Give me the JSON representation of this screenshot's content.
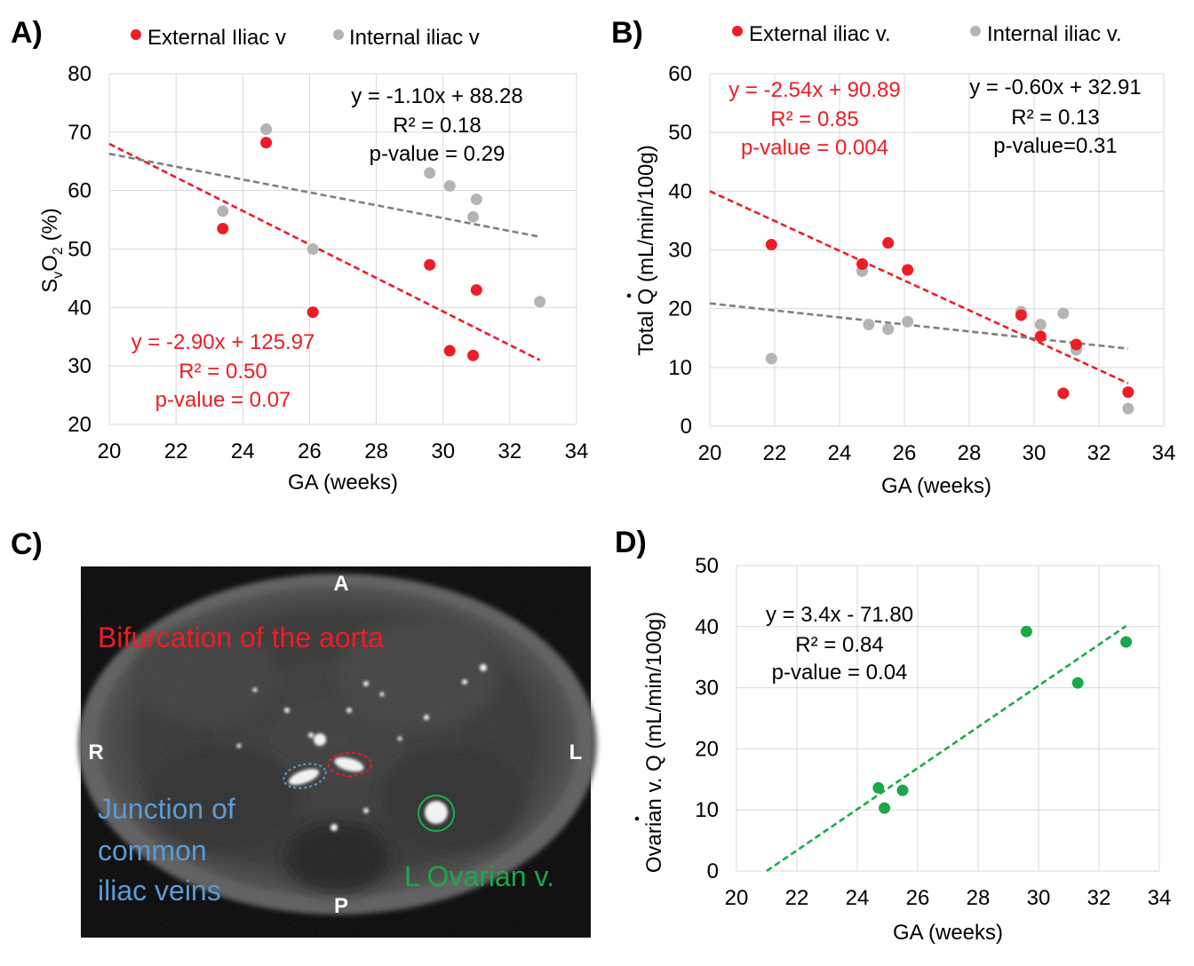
{
  "colors": {
    "red": "#ee1c25",
    "gray": "#b4b4b4",
    "dark_gray": "#7f7f7f",
    "green": "#1aa94a",
    "blue": "#5b9bd5",
    "grid": "#d9d9d9"
  },
  "chart_data": [
    {
      "id": "A",
      "panel_label": "A)",
      "type": "scatter",
      "xlabel": "GA (weeks)",
      "ylabel": "SᵥO₂ (%)",
      "xlim": [
        20,
        34
      ],
      "ylim": [
        20,
        80
      ],
      "xticks": [
        20,
        22,
        24,
        26,
        28,
        30,
        32,
        34
      ],
      "yticks": [
        20,
        30,
        40,
        50,
        60,
        70,
        80
      ],
      "legend": "top",
      "series": [
        {
          "name": "External Iliac v",
          "color": "#ee1c25",
          "points": [
            [
              23.4,
              53.5
            ],
            [
              24.7,
              68.2
            ],
            [
              26.1,
              39.2
            ],
            [
              29.6,
              47.3
            ],
            [
              30.2,
              32.6
            ],
            [
              30.9,
              31.8
            ],
            [
              31.0,
              43.0
            ]
          ],
          "trendline": {
            "x": [
              20.0,
              32.9
            ],
            "y": [
              68.0,
              31.0
            ]
          },
          "annotation": [
            "y = -2.90x + 125.97",
            "R² = 0.50",
            "p-value = 0.07"
          ]
        },
        {
          "name": "Internal iliac v",
          "color": "#b4b4b4",
          "points": [
            [
              23.4,
              56.5
            ],
            [
              24.7,
              70.5
            ],
            [
              26.1,
              50.0
            ],
            [
              29.6,
              63.0
            ],
            [
              30.2,
              60.8
            ],
            [
              30.9,
              55.5
            ],
            [
              31.0,
              58.5
            ],
            [
              32.9,
              41.0
            ]
          ],
          "trendline": {
            "x": [
              20.0,
              32.9
            ],
            "y": [
              66.3,
              52.1
            ]
          },
          "annotation": [
            "y = -1.10x + 88.28",
            "R² = 0.18",
            "p-value = 0.29"
          ]
        }
      ]
    },
    {
      "id": "B",
      "panel_label": "B)",
      "type": "scatter",
      "xlabel": "GA (weeks)",
      "ylabel": "Total Q (mL/min/100g)",
      "ylabel_dot_symbol": "Q",
      "xlim": [
        20,
        34
      ],
      "ylim": [
        0,
        60
      ],
      "xticks": [
        20,
        22,
        24,
        26,
        28,
        30,
        32,
        34
      ],
      "yticks": [
        0,
        10,
        20,
        30,
        40,
        50,
        60
      ],
      "legend": "top",
      "series": [
        {
          "name": "External iliac v.",
          "color": "#ee1c25",
          "points": [
            [
              21.9,
              30.9
            ],
            [
              24.7,
              27.6
            ],
            [
              25.5,
              31.2
            ],
            [
              26.1,
              26.6
            ],
            [
              29.6,
              18.9
            ],
            [
              30.2,
              15.3
            ],
            [
              30.9,
              5.6
            ],
            [
              31.3,
              13.9
            ],
            [
              32.9,
              5.8
            ]
          ],
          "trendline": {
            "x": [
              20.0,
              32.9
            ],
            "y": [
              40.0,
              7.3
            ]
          },
          "annotation": [
            "y = -2.54x + 90.89",
            "R² = 0.85",
            "p-value = 0.004"
          ]
        },
        {
          "name": "Internal iliac v.",
          "color": "#b4b4b4",
          "points": [
            [
              21.9,
              11.5
            ],
            [
              24.7,
              26.4
            ],
            [
              24.9,
              17.3
            ],
            [
              25.5,
              16.5
            ],
            [
              26.1,
              17.8
            ],
            [
              29.6,
              19.5
            ],
            [
              30.2,
              17.3
            ],
            [
              30.9,
              19.2
            ],
            [
              31.3,
              13.0
            ],
            [
              32.9,
              3.0
            ]
          ],
          "trendline": {
            "x": [
              20.0,
              32.9
            ],
            "y": [
              20.9,
              13.2
            ]
          },
          "annotation": [
            "y = -0.60x + 32.91",
            "R² = 0.13",
            "p-value=0.31"
          ]
        }
      ]
    },
    {
      "id": "D",
      "panel_label": "D)",
      "type": "scatter",
      "xlabel": "GA (weeks)",
      "ylabel": "Ovarian v. Q (mL/min/100g)",
      "ylabel_dot_symbol": "Q",
      "xlim": [
        20,
        34
      ],
      "ylim": [
        0,
        50
      ],
      "xticks": [
        20,
        22,
        24,
        26,
        28,
        30,
        32,
        34
      ],
      "yticks": [
        0,
        10,
        20,
        30,
        40,
        50
      ],
      "series": [
        {
          "name": "Ovarian v.",
          "color": "#1aa94a",
          "points": [
            [
              24.7,
              13.6
            ],
            [
              24.9,
              10.3
            ],
            [
              25.5,
              13.2
            ],
            [
              29.6,
              39.2
            ],
            [
              31.3,
              30.8
            ],
            [
              32.9,
              37.5
            ]
          ],
          "trendline": {
            "x": [
              21.0,
              32.9
            ],
            "y": [
              0.0,
              40.1
            ]
          },
          "annotation": [
            "y = 3.4x - 71.80",
            "R² = 0.84",
            "p-value = 0.04"
          ]
        }
      ]
    }
  ],
  "panel_c": {
    "panel_label": "C)",
    "orientation": {
      "anterior": "A",
      "posterior": "P",
      "right": "R",
      "left": "L"
    },
    "labels": {
      "aorta": "Bifurcation of the aorta",
      "iliac_junction": [
        "Junction of",
        "common",
        "iliac veins"
      ],
      "ovarian": "L Ovarian v."
    }
  }
}
